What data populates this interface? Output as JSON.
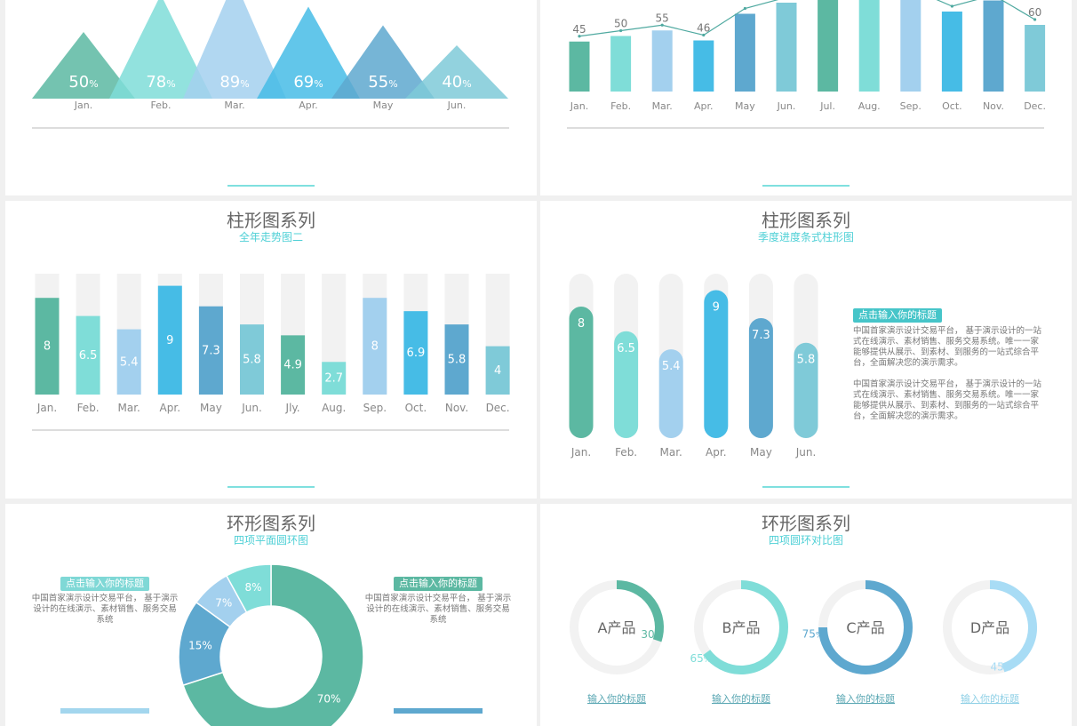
{
  "colors": {
    "c1": "#5cb8a2",
    "c2": "#7fddd8",
    "c3": "#a3d0ee",
    "c4": "#46bce6",
    "c5": "#5ea8cf",
    "c6": "#7fcad8",
    "track": "#f2f2f2",
    "accent": "#4fd0d6"
  },
  "panel1": {
    "chart_data": {
      "type": "area",
      "categories": [
        "Jan.",
        "Feb.",
        "Mar.",
        "Apr.",
        "May",
        "Jun."
      ],
      "values": [
        50,
        78,
        89,
        69,
        55,
        40
      ],
      "value_suffix": "%"
    }
  },
  "panel2": {
    "chart_data": {
      "type": "bar",
      "categories": [
        "Jan.",
        "Feb.",
        "Mar.",
        "Apr.",
        "May",
        "Jun.",
        "Jul.",
        "Aug.",
        "Sep.",
        "Oct.",
        "Nov.",
        "Dec."
      ],
      "values": [
        45,
        50,
        55,
        46,
        70,
        80,
        85,
        90,
        88,
        72,
        82,
        60
      ],
      "labels": [
        "45",
        "50",
        "55",
        "46",
        "",
        "",
        "",
        "",
        "",
        "",
        "",
        "60"
      ]
    }
  },
  "panel3": {
    "title": "柱形图系列",
    "subtitle": "全年走势图二",
    "chart_data": {
      "type": "bar",
      "categories": [
        "Jan.",
        "Feb.",
        "Mar.",
        "Apr.",
        "May",
        "Jun.",
        "Jly.",
        "Aug.",
        "Sep.",
        "Oct.",
        "Nov.",
        "Dec."
      ],
      "values": [
        8,
        6.5,
        5.4,
        9,
        7.3,
        5.8,
        4.9,
        2.7,
        8,
        6.9,
        5.8,
        4
      ],
      "ylim": [
        0,
        10
      ]
    }
  },
  "panel4": {
    "title": "柱形图系列",
    "subtitle": "季度进度条式柱形图",
    "chart_data": {
      "type": "bar",
      "categories": [
        "Jan.",
        "Feb.",
        "Mar.",
        "Apr.",
        "May",
        "Jun."
      ],
      "values": [
        8,
        6.5,
        5.4,
        9,
        7.3,
        5.8
      ],
      "ylim": [
        0,
        10
      ]
    },
    "tag": "点击输入你的标题",
    "para1": "中国首家演示设计交易平台， 基于演示设计的一站式在线演示、素材销售、服务交易系统。唯一一家能够提供从展示、到素材、到服务的一站式综合平台，全面解决您的演示需求。",
    "para2": "中国首家演示设计交易平台， 基于演示设计的一站式在线演示、素材销售、服务交易系统。唯一一家能够提供从展示、到素材、到服务的一站式综合平台，全面解决您的演示需求。"
  },
  "panel5": {
    "title": "环形图系列",
    "subtitle": "四项平面圆环图",
    "chart_data": {
      "type": "pie",
      "categories": [
        "70%",
        "15%",
        "7%",
        "8%"
      ],
      "values": [
        70,
        15,
        7,
        8
      ],
      "labels": [
        "70%",
        "15%",
        "7%",
        "8%"
      ]
    },
    "left_tag": "点击输入你的标题",
    "left_text": "中国首家演示设计交易平台， 基于演示设计的在线演示、素材销售、服务交易系统",
    "right_tag": "点击输入你的标题",
    "right_text": "中国首家演示设计交易平台， 基于演示设计的在线演示、素材销售、服务交易系统"
  },
  "panel6": {
    "title": "环形图系列",
    "subtitle": "四项圆环对比图",
    "chart_data": {
      "type": "pie",
      "categories": [
        "A产品",
        "B产品",
        "C产品",
        "D产品"
      ],
      "values": [
        30,
        65,
        75,
        45
      ],
      "value_suffix": "%"
    },
    "item_title": "输入你的标题"
  }
}
